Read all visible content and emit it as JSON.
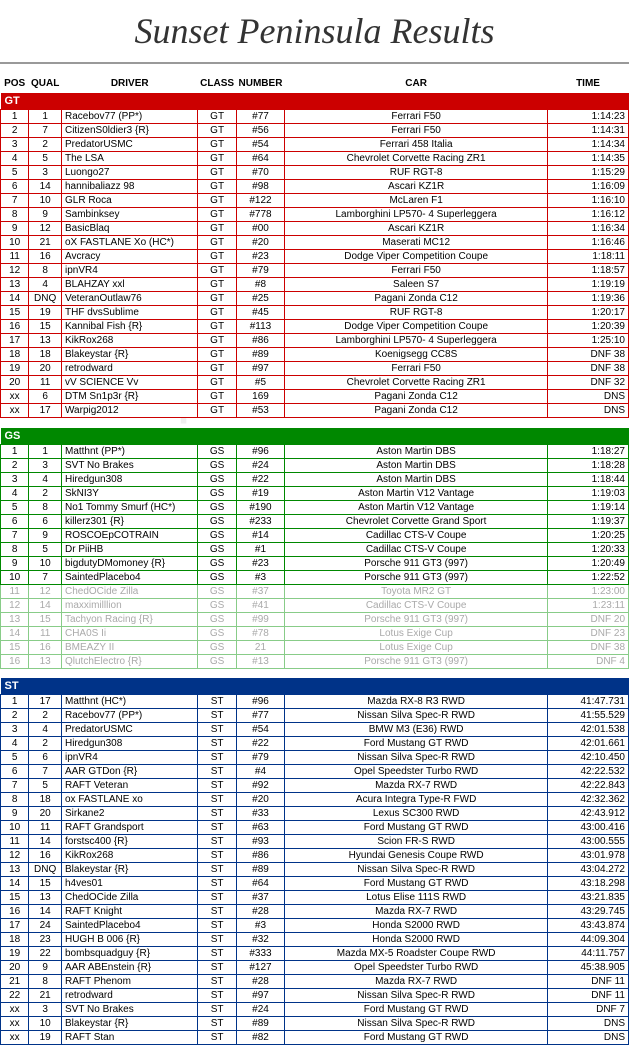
{
  "title": "Sunset Peninsula Results",
  "headers": {
    "pos": "POS",
    "qual": "QUAL",
    "driver": "DRIVER",
    "class": "CLASS",
    "number": "NUMBER",
    "car": "CAR",
    "time": "TIME"
  },
  "sections": [
    {
      "key": "GT",
      "cls": "gt",
      "label": "GT",
      "rows": [
        {
          "pos": "1",
          "qual": "1",
          "driver": "Racebov77 (PP*)",
          "class": "GT",
          "num": "#77",
          "car": "Ferrari F50",
          "time": "1:14:23"
        },
        {
          "pos": "2",
          "qual": "7",
          "driver": "CitizenS0ldier3 {R}",
          "class": "GT",
          "num": "#56",
          "car": "Ferrari F50",
          "time": "1:14:31"
        },
        {
          "pos": "3",
          "qual": "2",
          "driver": "PredatorUSMC",
          "class": "GT",
          "num": "#54",
          "car": "Ferrari 458 Italia",
          "time": "1:14:34"
        },
        {
          "pos": "4",
          "qual": "5",
          "driver": "The LSA",
          "class": "GT",
          "num": "#64",
          "car": "Chevrolet Corvette Racing ZR1",
          "time": "1:14:35"
        },
        {
          "pos": "5",
          "qual": "3",
          "driver": "Luongo27",
          "class": "GT",
          "num": "#70",
          "car": "RUF RGT-8",
          "time": "1:15:29"
        },
        {
          "pos": "6",
          "qual": "14",
          "driver": "hannibaliazz 98",
          "class": "GT",
          "num": "#98",
          "car": "Ascari KZ1R",
          "time": "1:16:09"
        },
        {
          "pos": "7",
          "qual": "10",
          "driver": "GLR Roca",
          "class": "GT",
          "num": "#122",
          "car": "McLaren F1",
          "time": "1:16:10"
        },
        {
          "pos": "8",
          "qual": "9",
          "driver": "Sambinksey",
          "class": "GT",
          "num": "#778",
          "car": "Lamborghini LP570- 4 Superleggera",
          "time": "1:16:12"
        },
        {
          "pos": "9",
          "qual": "12",
          "driver": "BasicBlaq",
          "class": "GT",
          "num": "#00",
          "car": "Ascari KZ1R",
          "time": "1:16:34"
        },
        {
          "pos": "10",
          "qual": "21",
          "driver": "oX FASTLANE Xo (HC*)",
          "class": "GT",
          "num": "#20",
          "car": "Maserati MC12",
          "time": "1:16:46"
        },
        {
          "pos": "11",
          "qual": "16",
          "driver": "Avcracy",
          "class": "GT",
          "num": "#23",
          "car": "Dodge Viper Competition Coupe",
          "time": "1:18:11"
        },
        {
          "pos": "12",
          "qual": "8",
          "driver": "ipnVR4",
          "class": "GT",
          "num": "#79",
          "car": "Ferrari F50",
          "time": "1:18:57"
        },
        {
          "pos": "13",
          "qual": "4",
          "driver": "BLAHZAY xxl",
          "class": "GT",
          "num": "#8",
          "car": "Saleen S7",
          "time": "1:19:19"
        },
        {
          "pos": "14",
          "qual": "DNQ",
          "driver": "VeteranOutlaw76",
          "class": "GT",
          "num": "#25",
          "car": "Pagani Zonda C12",
          "time": "1:19:36"
        },
        {
          "pos": "15",
          "qual": "19",
          "driver": "THF dvsSublime",
          "class": "GT",
          "num": "#45",
          "car": "RUF RGT-8",
          "time": "1:20:17"
        },
        {
          "pos": "16",
          "qual": "15",
          "driver": "Kannibal Fish {R}",
          "class": "GT",
          "num": "#113",
          "car": "Dodge Viper Competition Coupe",
          "time": "1:20:39"
        },
        {
          "pos": "17",
          "qual": "13",
          "driver": "KikRox268",
          "class": "GT",
          "num": "#86",
          "car": "Lamborghini LP570- 4 Superleggera",
          "time": "1:25:10"
        },
        {
          "pos": "18",
          "qual": "18",
          "driver": "Blakeystar {R}",
          "class": "GT",
          "num": "#89",
          "car": "Koenigsegg CC8S",
          "time": "DNF 38"
        },
        {
          "pos": "19",
          "qual": "20",
          "driver": "retrodward",
          "class": "GT",
          "num": "#97",
          "car": "Ferrari F50",
          "time": "DNF 38"
        },
        {
          "pos": "20",
          "qual": "11",
          "driver": "vV SCIENCE Vv",
          "class": "GT",
          "num": "#5",
          "car": "Chevrolet Corvette Racing ZR1",
          "time": "DNF 32"
        },
        {
          "pos": "xx",
          "qual": "6",
          "driver": "DTM Sn1p3r {R}",
          "class": "GT",
          "num": "169",
          "car": "Pagani Zonda C12",
          "time": "DNS"
        },
        {
          "pos": "xx",
          "qual": "17",
          "driver": "Warpig2012",
          "class": "GT",
          "num": "#53",
          "car": "Pagani Zonda C12",
          "time": "DNS"
        }
      ]
    },
    {
      "key": "GS",
      "cls": "gs",
      "label": "GS",
      "rows": [
        {
          "pos": "1",
          "qual": "1",
          "driver": "Matthnt (PP*)",
          "class": "GS",
          "num": "#96",
          "car": "Aston Martin DBS",
          "time": "1:18:27"
        },
        {
          "pos": "2",
          "qual": "3",
          "driver": "SVT No Brakes",
          "class": "GS",
          "num": "#24",
          "car": "Aston Martin DBS",
          "time": "1:18:28"
        },
        {
          "pos": "3",
          "qual": "4",
          "driver": "Hiredgun308",
          "class": "GS",
          "num": "#22",
          "car": "Aston Martin DBS",
          "time": "1:18:44"
        },
        {
          "pos": "4",
          "qual": "2",
          "driver": "SkNI3Y",
          "class": "GS",
          "num": "#19",
          "car": "Aston Martin V12 Vantage",
          "time": "1:19:03"
        },
        {
          "pos": "5",
          "qual": "8",
          "driver": "No1 Tommy Smurf (HC*)",
          "class": "GS",
          "num": "#190",
          "car": "Aston Martin V12 Vantage",
          "time": "1:19:14"
        },
        {
          "pos": "6",
          "qual": "6",
          "driver": "killerz301 {R}",
          "class": "GS",
          "num": "#233",
          "car": "Chevrolet Corvette Grand Sport",
          "time": "1:19:37"
        },
        {
          "pos": "7",
          "qual": "9",
          "driver": "ROSCOEpCOTRAIN",
          "class": "GS",
          "num": "#14",
          "car": "Cadillac CTS-V Coupe",
          "time": "1:20:25"
        },
        {
          "pos": "8",
          "qual": "5",
          "driver": "Dr PiiHB",
          "class": "GS",
          "num": "#1",
          "car": "Cadillac CTS-V Coupe",
          "time": "1:20:33"
        },
        {
          "pos": "9",
          "qual": "10",
          "driver": "bigdutyDMomoney {R}",
          "class": "GS",
          "num": "#23",
          "car": "Porsche 911 GT3 (997)",
          "time": "1:20:49"
        },
        {
          "pos": "10",
          "qual": "7",
          "driver": "SaintedPlacebo4",
          "class": "GS",
          "num": "#3",
          "car": "Porsche 911 GT3 (997)",
          "time": "1:22:52"
        },
        {
          "pos": "11",
          "qual": "12",
          "driver": "ChedOCide Zilla",
          "class": "GS",
          "num": "#37",
          "car": "Toyota MR2 GT",
          "time": "1:23:00",
          "faded": true
        },
        {
          "pos": "12",
          "qual": "14",
          "driver": "maxximilllion",
          "class": "GS",
          "num": "#41",
          "car": "Cadillac CTS-V Coupe",
          "time": "1:23:11",
          "faded": true
        },
        {
          "pos": "13",
          "qual": "15",
          "driver": "Tachyon Racing {R}",
          "class": "GS",
          "num": "#99",
          "car": "Porsche 911 GT3 (997)",
          "time": "DNF 20",
          "faded": true
        },
        {
          "pos": "14",
          "qual": "11",
          "driver": "CHA0S Ii",
          "class": "GS",
          "num": "#78",
          "car": "Lotus Exige Cup",
          "time": "DNF 23",
          "faded": true
        },
        {
          "pos": "15",
          "qual": "16",
          "driver": "BMEAZY II",
          "class": "GS",
          "num": "21",
          "car": "Lotus Exige Cup",
          "time": "DNF 38",
          "faded": true
        },
        {
          "pos": "16",
          "qual": "13",
          "driver": "QlutchElectro {R}",
          "class": "GS",
          "num": "#13",
          "car": "Porsche 911 GT3 (997)",
          "time": "DNF 4",
          "faded": true
        }
      ]
    },
    {
      "key": "ST",
      "cls": "st",
      "label": "ST",
      "rows": [
        {
          "pos": "1",
          "qual": "17",
          "driver": "Matthnt (HC*)",
          "class": "ST",
          "num": "#96",
          "car": "Mazda RX-8 R3 RWD",
          "time": "41:47.731"
        },
        {
          "pos": "2",
          "qual": "2",
          "driver": "Racebov77 (PP*)",
          "class": "ST",
          "num": "#77",
          "car": "Nissan Silva Spec-R RWD",
          "time": "41:55.529"
        },
        {
          "pos": "3",
          "qual": "4",
          "driver": "PredatorUSMC",
          "class": "ST",
          "num": "#54",
          "car": "BMW M3 (E36) RWD",
          "time": "42:01.538"
        },
        {
          "pos": "4",
          "qual": "2",
          "driver": "Hiredgun308",
          "class": "ST",
          "num": "#22",
          "car": "Ford Mustang GT RWD",
          "time": "42:01.661"
        },
        {
          "pos": "5",
          "qual": "6",
          "driver": "ipnVR4",
          "class": "ST",
          "num": "#79",
          "car": "Nissan Silva Spec-R RWD",
          "time": "42:10.450"
        },
        {
          "pos": "6",
          "qual": "7",
          "driver": "AAR GTDon {R}",
          "class": "ST",
          "num": "#4",
          "car": "Opel Speedster Turbo RWD",
          "time": "42:22.532"
        },
        {
          "pos": "7",
          "qual": "5",
          "driver": "RAFT Veteran",
          "class": "ST",
          "num": "#92",
          "car": "Mazda RX-7 RWD",
          "time": "42:22.843"
        },
        {
          "pos": "8",
          "qual": "18",
          "driver": "ox FASTLANE xo",
          "class": "ST",
          "num": "#20",
          "car": "Acura Integra Type-R FWD",
          "time": "42:32.362"
        },
        {
          "pos": "9",
          "qual": "20",
          "driver": "Sirkane2",
          "class": "ST",
          "num": "#33",
          "car": "Lexus SC300 RWD",
          "time": "42:43.912"
        },
        {
          "pos": "10",
          "qual": "11",
          "driver": "RAFT Grandsport",
          "class": "ST",
          "num": "#63",
          "car": "Ford Mustang GT RWD",
          "time": "43:00.416"
        },
        {
          "pos": "11",
          "qual": "14",
          "driver": "forstsc400 {R}",
          "class": "ST",
          "num": "#93",
          "car": "Scion FR-S RWD",
          "time": "43:00.555"
        },
        {
          "pos": "12",
          "qual": "16",
          "driver": "KikRox268",
          "class": "ST",
          "num": "#86",
          "car": "Hyundai Genesis Coupe RWD",
          "time": "43:01.978"
        },
        {
          "pos": "13",
          "qual": "DNQ",
          "driver": "Blakeystar {R}",
          "class": "ST",
          "num": "#89",
          "car": "Nissan Silva Spec-R RWD",
          "time": "43:04.272"
        },
        {
          "pos": "14",
          "qual": "15",
          "driver": "h4ves01",
          "class": "ST",
          "num": "#64",
          "car": "Ford Mustang GT RWD",
          "time": "43:18.298"
        },
        {
          "pos": "15",
          "qual": "13",
          "driver": "ChedOCide Zilla",
          "class": "ST",
          "num": "#37",
          "car": "Lotus Elise 111S RWD",
          "time": "43:21.835"
        },
        {
          "pos": "16",
          "qual": "14",
          "driver": "RAFT Knight",
          "class": "ST",
          "num": "#28",
          "car": "Mazda RX-7 RWD",
          "time": "43:29.745"
        },
        {
          "pos": "17",
          "qual": "24",
          "driver": "SaintedPlacebo4",
          "class": "ST",
          "num": "#3",
          "car": "Honda S2000 RWD",
          "time": "43:43.874"
        },
        {
          "pos": "18",
          "qual": "23",
          "driver": "HUGH B 006 {R}",
          "class": "ST",
          "num": "#32",
          "car": "Honda S2000 RWD",
          "time": "44:09.304"
        },
        {
          "pos": "19",
          "qual": "22",
          "driver": "bombsquadguy {R}",
          "class": "ST",
          "num": "#333",
          "car": "Mazda MX-5 Roadster Coupe RWD",
          "time": "44:11.757"
        },
        {
          "pos": "20",
          "qual": "9",
          "driver": "AAR ABEnstein {R}",
          "class": "ST",
          "num": "#127",
          "car": "Opel Speedster Turbo RWD",
          "time": "45:38.905"
        },
        {
          "pos": "21",
          "qual": "8",
          "driver": "RAFT Phenom",
          "class": "ST",
          "num": "#28",
          "car": "Mazda RX-7 RWD",
          "time": "DNF 11"
        },
        {
          "pos": "22",
          "qual": "21",
          "driver": "retrodward",
          "class": "ST",
          "num": "#97",
          "car": "Nissan Silva Spec-R RWD",
          "time": "DNF 11"
        },
        {
          "pos": "xx",
          "qual": "3",
          "driver": "SVT No Brakes",
          "class": "ST",
          "num": "#24",
          "car": "Ford Mustang GT RWD",
          "time": "DNF 7"
        },
        {
          "pos": "xx",
          "qual": "10",
          "driver": "Blakeystar {R}",
          "class": "ST",
          "num": "#89",
          "car": "Nissan Silva Spec-R RWD",
          "time": "DNS"
        },
        {
          "pos": "xx",
          "qual": "19",
          "driver": "RAFT Stan",
          "class": "ST",
          "num": "#82",
          "car": "Ford Mustang GT RWD",
          "time": "DNS"
        }
      ]
    }
  ]
}
